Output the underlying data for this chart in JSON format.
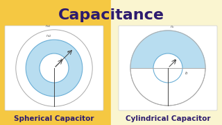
{
  "title": "Capacitance",
  "title_color": "#2d1b6e",
  "title_fontsize": 16,
  "bg_left": "#f5c842",
  "bg_right": "#faf5d0",
  "label_left": "Spherical Capacitor",
  "label_right": "Cylindrical Capacitor",
  "label_color": "#2d1b6e",
  "label_fontsize": 7.5,
  "circle_blue": "#b8ddf0",
  "circle_edge": "#6aaed6",
  "circle_outer_edge": "#aaaaaa",
  "line_color": "#444444",
  "text_color": "#555555",
  "box_edge": "#cccccc"
}
